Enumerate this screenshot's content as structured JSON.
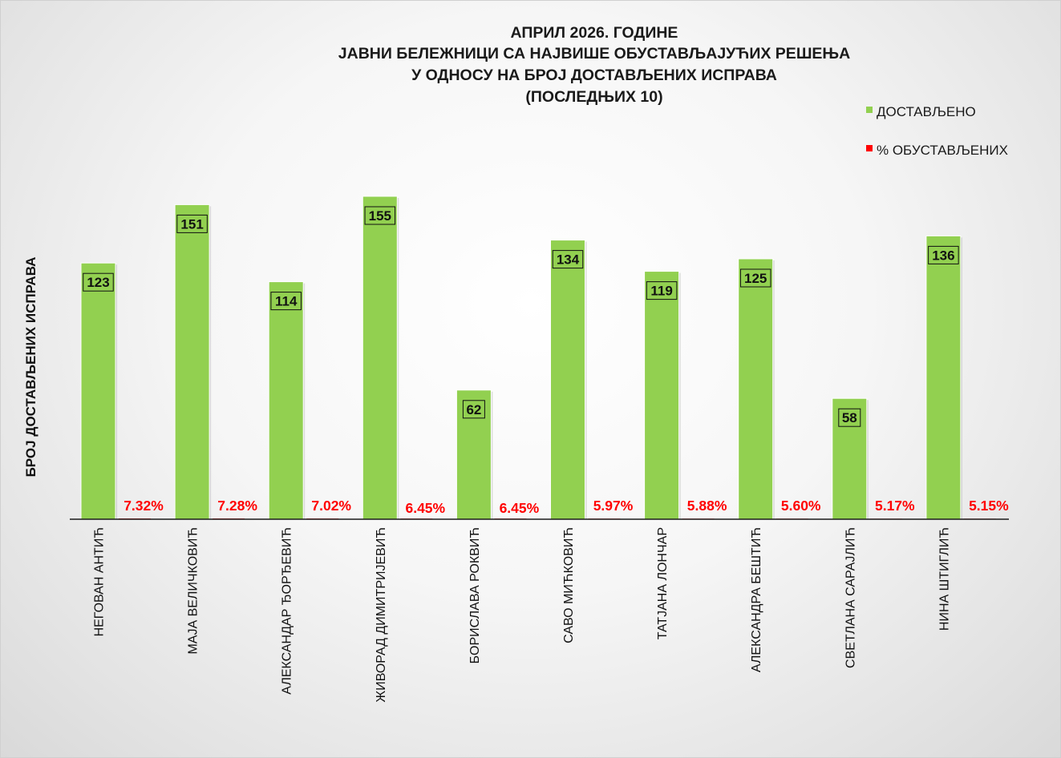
{
  "chart_data": {
    "type": "bar",
    "title_lines": [
      "АПРИЛ 2026. ГОДИНЕ",
      "ЈАВНИ БЕЛЕЖНИЦИ СА НАЈВИШЕ ОБУСТАВЉАЈУЋИХ РЕШЕЊА",
      "У ОДНОСУ НА БРОЈ ДОСТАВЉЕНИХ ИСПРАВА",
      "(ПОСЛЕДЊИХ 10)"
    ],
    "ylabel": "БРОЈ ДОСТАВЉЕНИХ ИСПРАВА",
    "xlabel": "",
    "categories": [
      "НЕГОВАН АНТИЋ",
      "МАЈА ВЕЛИЧКОВИЋ",
      "АЛЕКСАНДАР ЂОРЂЕВИЋ",
      "ЖИВОРАД ДИМИТРИЈЕВИЋ",
      "БОРИСЛАВА РОКВИЋ",
      "САВО МИЋКОВИЋ",
      "ТАТЈАНА ЛОНЧАР",
      "АЛЕКСАНДРА БЕШТИЋ",
      "СВЕТЛАНА САРАЈЛИЋ",
      "НИНА ШТИГЛИЋ"
    ],
    "series": [
      {
        "name": "ДОСТАВЉЕНО",
        "color": "#92d050",
        "values": [
          123,
          151,
          114,
          155,
          62,
          134,
          119,
          125,
          58,
          136
        ],
        "value_labels": [
          "123",
          "151",
          "114",
          "155",
          "62",
          "134",
          "119",
          "125",
          "58",
          "136"
        ]
      },
      {
        "name": "% ОБУСТАВЉЕНИХ",
        "color": "#ff0000",
        "values": [
          7.32,
          7.28,
          7.02,
          6.45,
          6.45,
          5.97,
          5.88,
          5.6,
          5.17,
          5.15
        ],
        "value_labels": [
          "7.32%",
          "7.28%",
          "7.02%",
          "6.45%",
          "6.45%",
          "5.97%",
          "5.88%",
          "5.60%",
          "5.17%",
          "5.15%"
        ]
      }
    ],
    "legend_position": "top-right",
    "grid": false
  }
}
